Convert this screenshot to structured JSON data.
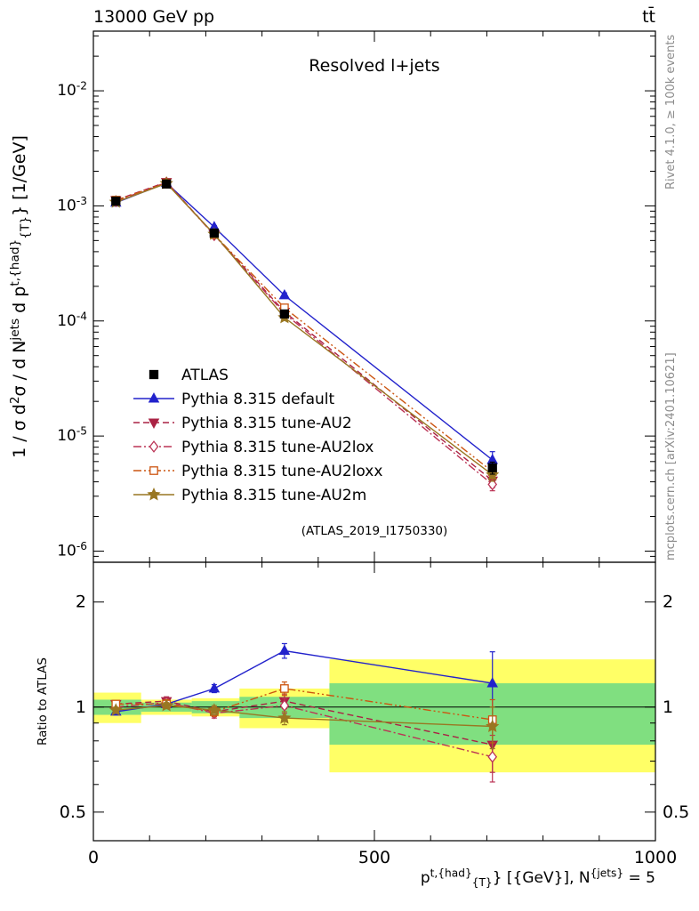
{
  "header": {
    "left": "13000 GeV pp",
    "right": "tt̄"
  },
  "side": {
    "top": "Rivet 4.1.0, ≥ 100k events",
    "bottom": "mcplots.cern.ch [arXiv:2401.10621]"
  },
  "chart_data": {
    "type": "line",
    "title": "Resolved l+jets",
    "watermark": "(ATLAS_2019_I1750330)",
    "colors": {
      "band_yellow": "#ffff66",
      "band_green": "#80df80",
      "axis": "#000000"
    },
    "axes": {
      "xlim": [
        0,
        1000
      ],
      "x_major_ticks": [
        0,
        500,
        1000
      ],
      "x_minor_step": 100,
      "x_scale": "linear",
      "main_ylim": [
        8e-07,
        0.033
      ],
      "main_y_decades": [
        -2,
        -3,
        -4,
        -5,
        -6
      ],
      "y_scale_main": "log",
      "ratio_ylim": [
        0.414,
        2.6
      ],
      "ratio_major_ticks": [
        0.5,
        1,
        2
      ],
      "ratio_minor_ticks": [
        0.6,
        0.7,
        0.8,
        0.9
      ],
      "y_scale_ratio": "log",
      "grid": false
    },
    "labels": {
      "ylabel_main": [
        {
          "t": "1 / σ d"
        },
        {
          "t": "2",
          "s": "sup"
        },
        {
          "t": "σ / d N"
        },
        {
          "t": "jets",
          "s": "sup"
        },
        {
          "t": " d p"
        },
        {
          "t": "t,{had}",
          "s": "sup"
        },
        {
          "t": "{T}",
          "s": "sub"
        },
        {
          "t": "} [1/GeV]"
        }
      ],
      "ylabel_ratio": "Ratio to ATLAS",
      "xlabel": [
        {
          "t": "p"
        },
        {
          "t": "t,{had}",
          "s": "sup"
        },
        {
          "t": "{T}",
          "s": "sub"
        },
        {
          "t": "} [{GeV}], N"
        },
        {
          "t": "{jets}",
          "s": "sup"
        },
        {
          "t": " = 5"
        }
      ]
    },
    "x_points": [
      40,
      130,
      215,
      340,
      710
    ],
    "bin_edges": [
      0,
      85,
      175,
      260,
      420,
      1000
    ],
    "bands": [
      {
        "x0": 0,
        "x1": 85,
        "yellow": [
          0.9,
          1.1
        ],
        "green": [
          0.95,
          1.05
        ]
      },
      {
        "x0": 85,
        "x1": 175,
        "yellow": [
          0.95,
          1.05
        ],
        "green": [
          0.97,
          1.03
        ]
      },
      {
        "x0": 175,
        "x1": 260,
        "yellow": [
          0.94,
          1.06
        ],
        "green": [
          0.96,
          1.04
        ]
      },
      {
        "x0": 260,
        "x1": 420,
        "yellow": [
          0.87,
          1.13
        ],
        "green": [
          0.93,
          1.07
        ]
      },
      {
        "x0": 420,
        "x1": 1000,
        "yellow": [
          0.65,
          1.37
        ],
        "green": [
          0.78,
          1.17
        ]
      }
    ],
    "series": [
      {
        "key": "atlas",
        "label": "ATLAS",
        "color": "#000000",
        "marker": "square",
        "open": false,
        "line": "none",
        "msize": 4.5,
        "main": [
          0.0011,
          0.00155,
          0.00058,
          0.000115,
          5.3e-06
        ],
        "main_err": [
          0.04,
          0.03,
          0.04,
          0.06,
          0.12
        ]
      },
      {
        "key": "default",
        "label": "Pythia 8.315 default",
        "color": "#2222cc",
        "marker": "triangle-up",
        "open": false,
        "line": "solid",
        "msize": 4.5,
        "main": [
          0.001067,
          0.001581,
          0.000655,
          0.000167,
          6.2e-06
        ],
        "main_err": [
          0.02,
          0.02,
          0.03,
          0.05,
          0.18
        ],
        "ratio": [
          0.97,
          1.02,
          1.13,
          1.45,
          1.17
        ],
        "ratio_err": [
          0.02,
          0.02,
          0.03,
          0.07,
          0.27
        ]
      },
      {
        "key": "au2",
        "label": "Pythia 8.315 tune-AU2",
        "color": "#aa2244",
        "marker": "triangle-down",
        "open": false,
        "line": "dash",
        "msize": 4.5,
        "main": [
          0.001122,
          0.001612,
          0.000563,
          0.00012,
          4.1e-06
        ],
        "main_err": [
          0.02,
          0.02,
          0.03,
          0.05,
          0.13
        ],
        "ratio": [
          1.02,
          1.04,
          0.97,
          1.04,
          0.78
        ],
        "ratio_err": [
          0.02,
          0.03,
          0.03,
          0.05,
          0.13
        ]
      },
      {
        "key": "au2lox",
        "label": "Pythia 8.315 tune-AU2lox",
        "color": "#bb3355",
        "marker": "diamond",
        "open": true,
        "line": "dashdot",
        "msize": 4.5,
        "main": [
          0.0011,
          0.001597,
          0.000557,
          0.000116,
          3.8e-06
        ],
        "main_err": [
          0.02,
          0.02,
          0.03,
          0.05,
          0.12
        ],
        "ratio": [
          1.0,
          1.03,
          0.96,
          1.01,
          0.72
        ],
        "ratio_err": [
          0.02,
          0.03,
          0.03,
          0.05,
          0.11
        ]
      },
      {
        "key": "au2loxx",
        "label": "Pythia 8.315 tune-AU2loxx",
        "color": "#cc5511",
        "marker": "square",
        "open": true,
        "line": "dashdotdot",
        "msize": 4.2,
        "main": [
          0.001122,
          0.001581,
          0.000563,
          0.00013,
          4.9e-06
        ],
        "main_err": [
          0.02,
          0.02,
          0.03,
          0.05,
          0.13
        ],
        "ratio": [
          1.02,
          1.02,
          0.97,
          1.13,
          0.92
        ],
        "ratio_err": [
          0.02,
          0.03,
          0.03,
          0.05,
          0.13
        ]
      },
      {
        "key": "au2m",
        "label": "Pythia 8.315 tune-AU2m",
        "color": "#997722",
        "marker": "star",
        "open": false,
        "line": "solid",
        "msize": 4.5,
        "main": [
          0.001078,
          0.001566,
          0.000568,
          0.000107,
          4.6e-06
        ],
        "main_err": [
          0.02,
          0.02,
          0.03,
          0.04,
          0.12
        ],
        "ratio": [
          0.98,
          1.01,
          0.98,
          0.93,
          0.88
        ],
        "ratio_err": [
          0.02,
          0.02,
          0.03,
          0.04,
          0.12
        ]
      }
    ],
    "legend_position": "center-left"
  }
}
